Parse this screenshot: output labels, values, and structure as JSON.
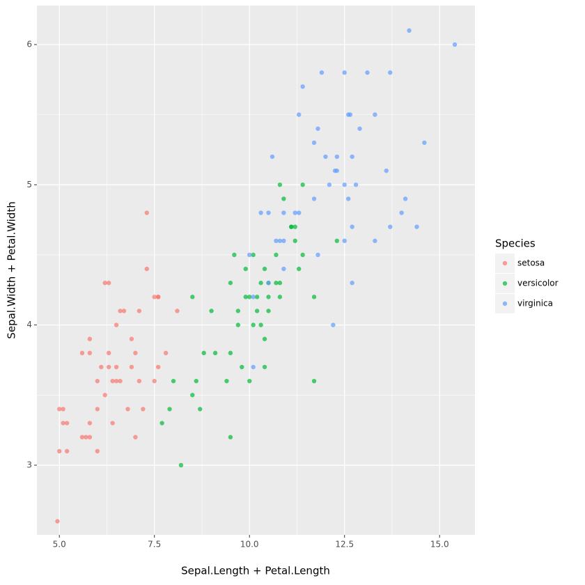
{
  "chart_data": {
    "type": "scatter",
    "x_label": "Sepal.Length + Petal.Length",
    "y_label": "Sepal.Width + Petal.Width",
    "legend_title": "Species",
    "legend_position": "right",
    "grid": true,
    "xlim": [
      4.41,
      15.93
    ],
    "ylim": [
      2.503,
      6.278
    ],
    "xticks": [
      {
        "value": 5,
        "label": "5.0"
      },
      7.5,
      {
        "value": 10,
        "label": "10.0"
      },
      12.5,
      {
        "value": 15,
        "label": "15.0"
      }
    ],
    "yticks": [
      3,
      4,
      5,
      6
    ],
    "series": [
      {
        "name": "setosa",
        "color": "#F8766D",
        "x": [
          7.3,
          7.3,
          6.2,
          6.3,
          7.5,
          7.6,
          7.6,
          6.6,
          6.7,
          7.1,
          8.1,
          6.5,
          5.8,
          6.9,
          5.6,
          5.8,
          6.3,
          7.0,
          7.8,
          6.1,
          6.3,
          6.5,
          6.9,
          7.6,
          6.0,
          6.4,
          6.5,
          6.6,
          7.1,
          7.5,
          6.2,
          5.0,
          5.1,
          6.0,
          6.8,
          7.2,
          5.1,
          5.2,
          5.8,
          6.4,
          5.6,
          5.7,
          5.8,
          7.0,
          5.0,
          5.2,
          6.0,
          4.95
        ],
        "values": [
          4.8,
          4.4,
          4.3,
          4.3,
          4.2,
          4.2,
          4.2,
          4.1,
          4.1,
          4.1,
          4.1,
          4.0,
          3.9,
          3.9,
          3.8,
          3.8,
          3.8,
          3.8,
          3.8,
          3.7,
          3.7,
          3.7,
          3.7,
          3.7,
          3.6,
          3.6,
          3.6,
          3.6,
          3.6,
          3.6,
          3.5,
          3.4,
          3.4,
          3.4,
          3.4,
          3.4,
          3.3,
          3.3,
          3.3,
          3.3,
          3.2,
          3.2,
          3.2,
          3.2,
          3.1,
          3.1,
          3.1,
          2.6
        ]
      },
      {
        "name": "versicolor",
        "color": "#00BA38",
        "x": [
          10.8,
          11.4,
          10.9,
          11.1,
          11.1,
          11.2,
          11.2,
          12.3,
          9.6,
          10.1,
          10.7,
          11.4,
          9.9,
          10.4,
          11.3,
          9.5,
          10.3,
          10.5,
          10.7,
          10.8,
          8.5,
          9.9,
          10.0,
          10.2,
          10.5,
          10.8,
          11.7,
          9.0,
          9.7,
          10.2,
          10.5,
          9.7,
          10.1,
          10.3,
          10.4,
          8.8,
          9.1,
          9.5,
          9.8,
          10.4,
          8.0,
          8.6,
          9.4,
          10.0,
          11.7,
          8.5,
          7.9,
          8.7,
          7.7,
          9.5,
          8.2
        ],
        "values": [
          5.0,
          5.0,
          4.9,
          4.7,
          4.7,
          4.7,
          4.6,
          4.6,
          4.5,
          4.5,
          4.5,
          4.5,
          4.4,
          4.4,
          4.4,
          4.3,
          4.3,
          4.3,
          4.3,
          4.3,
          4.2,
          4.2,
          4.2,
          4.2,
          4.2,
          4.2,
          4.2,
          4.1,
          4.1,
          4.1,
          4.1,
          4.0,
          4.0,
          4.0,
          3.9,
          3.8,
          3.8,
          3.8,
          3.7,
          3.7,
          3.6,
          3.6,
          3.6,
          3.6,
          3.6,
          3.5,
          3.4,
          3.4,
          3.3,
          3.2,
          3.0
        ]
      },
      {
        "name": "virginica",
        "color": "#619CFF",
        "x": [
          14.2,
          15.4,
          11.9,
          12.5,
          13.1,
          13.7,
          11.4,
          11.3,
          12.6,
          12.65,
          13.3,
          11.8,
          12.9,
          11.7,
          14.6,
          10.6,
          12.0,
          12.3,
          12.7,
          12.25,
          12.3,
          13.6,
          12.1,
          12.5,
          12.8,
          11.7,
          12.6,
          14.1,
          10.3,
          10.5,
          10.9,
          11.2,
          11.3,
          14.0,
          12.7,
          13.7,
          14.4,
          10.7,
          10.8,
          10.9,
          12.5,
          13.3,
          10.0,
          11.8,
          10.9,
          10.5,
          12.7,
          10.1,
          12.2,
          10.1
        ],
        "values": [
          6.1,
          6.0,
          5.8,
          5.8,
          5.8,
          5.8,
          5.7,
          5.5,
          5.5,
          5.5,
          5.5,
          5.4,
          5.4,
          5.3,
          5.3,
          5.2,
          5.2,
          5.2,
          5.2,
          5.1,
          5.1,
          5.1,
          5.0,
          5.0,
          5.0,
          4.9,
          4.9,
          4.9,
          4.8,
          4.8,
          4.8,
          4.8,
          4.8,
          4.8,
          4.7,
          4.7,
          4.7,
          4.6,
          4.6,
          4.6,
          4.6,
          4.6,
          4.5,
          4.5,
          4.4,
          4.3,
          4.3,
          4.2,
          4.0,
          3.7
        ]
      }
    ]
  }
}
